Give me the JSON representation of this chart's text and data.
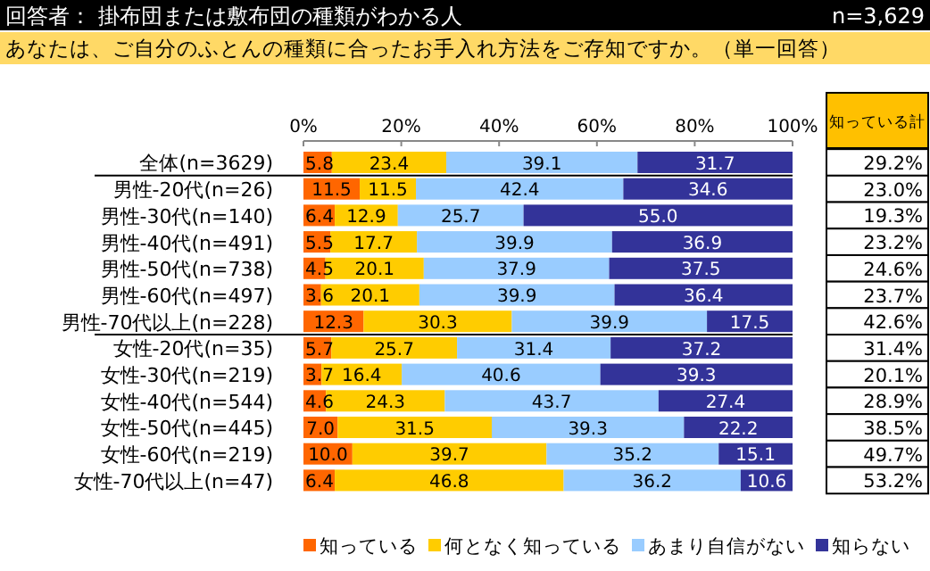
{
  "chart_data": {
    "type": "bar",
    "orientation": "horizontal",
    "stacked": true,
    "title": "回答者： 掛布団または敷布団の種類がわかる人",
    "subtitle": "あなたは、ご自分のふとんの種類に合ったお手入れ方法をご存知ですか。（単一回答）",
    "categories": [
      "全体(n=3629)",
      "男性-20代(n=26)",
      "男性-30代(n=140)",
      "男性-40代(n=491)",
      "男性-50代(n=738)",
      "男性-60代(n=497)",
      "男性-70代以上(n=228)",
      "女性-20代(n=35)",
      "女性-30代(n=219)",
      "女性-40代(n=544)",
      "女性-50代(n=445)",
      "女性-60代(n=219)",
      "女性-70代以上(n=47)"
    ],
    "series": [
      {
        "name": "知っている",
        "color": "#ff6600",
        "values": [
          5.8,
          11.5,
          6.4,
          5.5,
          4.5,
          3.6,
          12.3,
          5.7,
          3.7,
          4.6,
          7.0,
          10.0,
          6.4
        ],
        "value_labels": [
          "5.8",
          "11.5",
          "6.4",
          "5.5",
          "4.5",
          "3.6",
          "12.3",
          "5.7",
          "3.7",
          "4.6",
          "7.0",
          "10.0",
          "6.4"
        ]
      },
      {
        "name": "何となく知っている",
        "color": "#ffcc00",
        "values": [
          23.4,
          11.5,
          12.9,
          17.7,
          20.1,
          20.1,
          30.3,
          25.7,
          16.4,
          24.3,
          31.5,
          39.7,
          46.8
        ],
        "value_labels": [
          "23.4",
          "11.5",
          "12.9",
          "17.7",
          "20.1",
          "20.1",
          "30.3",
          "25.7",
          "16.4",
          "24.3",
          "31.5",
          "39.7",
          "46.8"
        ]
      },
      {
        "name": "あまり自信がない",
        "color": "#99ccff",
        "values": [
          39.1,
          42.4,
          25.7,
          39.9,
          37.9,
          39.9,
          39.9,
          31.4,
          40.6,
          43.7,
          39.3,
          35.2,
          36.2
        ],
        "value_labels": [
          "39.1",
          "42.4",
          "25.7",
          "39.9",
          "37.9",
          "39.9",
          "39.9",
          "31.4",
          "40.6",
          "43.7",
          "39.3",
          "35.2",
          "36.2"
        ]
      },
      {
        "name": "知らない",
        "color": "#333399",
        "values": [
          31.7,
          34.6,
          55.0,
          36.9,
          37.5,
          36.4,
          17.5,
          37.2,
          39.3,
          27.4,
          22.2,
          15.1,
          10.6
        ],
        "value_labels": [
          "31.7",
          "34.6",
          "55.0",
          "36.9",
          "37.5",
          "36.4",
          "17.5",
          "37.2",
          "39.3",
          "27.4",
          "22.2",
          "15.1",
          "10.6"
        ]
      }
    ],
    "xlim": [
      0,
      100
    ],
    "xticks": [
      {
        "value": 0,
        "label": "0%"
      },
      {
        "value": 20,
        "label": "20%"
      },
      {
        "value": 40,
        "label": "40%"
      },
      {
        "value": 60,
        "label": "60%"
      },
      {
        "value": 80,
        "label": "80%"
      },
      {
        "value": 100,
        "label": "100%"
      }
    ],
    "legend": "bottom",
    "annotations": [
      "n=3,629",
      "知っている計",
      "29.2%",
      "23.0%",
      "19.3%",
      "23.2%",
      "24.6%",
      "23.7%",
      "42.6%",
      "31.4%",
      "20.1%",
      "28.9%",
      "38.5%",
      "49.7%",
      "53.2%"
    ]
  }
}
